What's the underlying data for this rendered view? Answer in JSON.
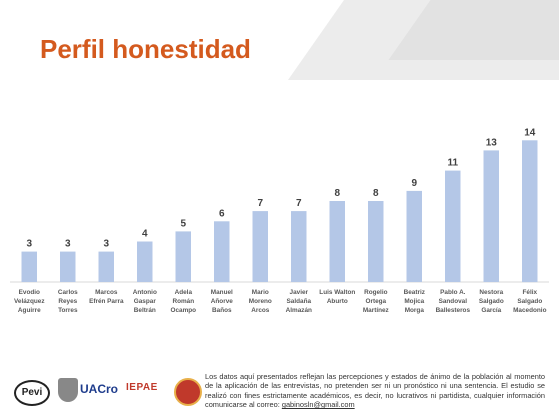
{
  "slide": {
    "title": "Perfil honestidad",
    "footer_lines": [
      "Los datos aquí presentados reflejan las percepciones y estados de ánimo de la población al",
      "momento de la aplicación de las entrevistas, no pretenden ser ni un pronóstico ni una sentencia.",
      "El estudio se realizó con fines estrictamente académicos, es decir, no lucrativos ni partidista,",
      "cualquier información comunicarse al correo:"
    ],
    "footer_email": "gabinosln@gmail.com",
    "logos": [
      {
        "name": "pevi-logo",
        "label": "Pevi"
      },
      {
        "name": "uac-logo",
        "label": "UACro"
      },
      {
        "name": "iepae-logo",
        "label": "IEPAE"
      },
      {
        "name": "seal-logo",
        "label": ""
      }
    ]
  },
  "colors": {
    "title": "#d45a1e",
    "bar": "#b4c7e7",
    "value_label": "#404040",
    "category_label": "#595959"
  },
  "chart_data": {
    "type": "bar",
    "title": "",
    "xlabel": "",
    "ylabel": "",
    "ylim": [
      0,
      16
    ],
    "grid": false,
    "legend": "none",
    "categories": [
      [
        "Evodio",
        "Velázquez",
        "Aguirre"
      ],
      [
        "Carlos",
        "Reyes",
        "Torres"
      ],
      [
        "Marcos",
        "Efrén Parra"
      ],
      [
        "Antonio",
        "Gaspar",
        "Beltrán"
      ],
      [
        "Adela",
        "Román",
        "Ocampo"
      ],
      [
        "Manuel",
        "Añorve",
        "Baños"
      ],
      [
        "Mario",
        "Moreno",
        "Arcos"
      ],
      [
        "Javier",
        "Saldaña",
        "Almazán"
      ],
      [
        "Luis Walton",
        "Aburto"
      ],
      [
        "Rogelio",
        "Ortega",
        "Martínez"
      ],
      [
        "Beatriz",
        "Mojica",
        "Morga"
      ],
      [
        "Pablo A.",
        "Sandoval",
        "Ballesteros"
      ],
      [
        "Nestora",
        "Salgado",
        "García"
      ],
      [
        "Félix",
        "Salgado",
        "Macedonio"
      ]
    ],
    "values": [
      3,
      3,
      3,
      4,
      5,
      6,
      7,
      7,
      8,
      8,
      9,
      11,
      13,
      14
    ]
  }
}
